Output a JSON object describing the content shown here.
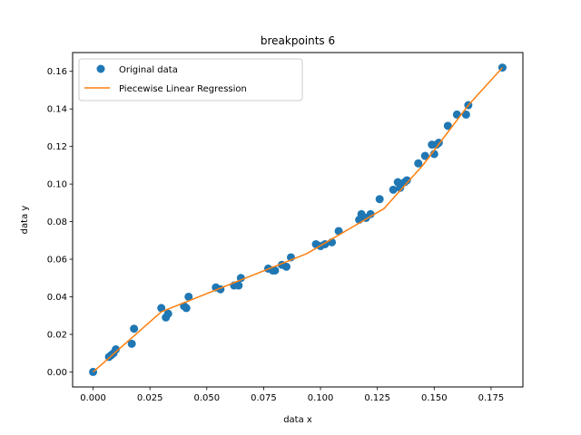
{
  "chart_data": {
    "type": "scatter",
    "title": "breakpoints 6",
    "xlabel": "data x",
    "ylabel": "data y",
    "xlim": [
      -0.009,
      0.189
    ],
    "ylim": [
      -0.008,
      0.17
    ],
    "grid": false,
    "legend_position": "top-left",
    "x_ticks": [
      0.0,
      0.025,
      0.05,
      0.075,
      0.1,
      0.125,
      0.15,
      0.175
    ],
    "x_tick_labels": [
      "0.000",
      "0.025",
      "0.050",
      "0.075",
      "0.100",
      "0.125",
      "0.150",
      "0.175"
    ],
    "y_ticks": [
      0.0,
      0.02,
      0.04,
      0.06,
      0.08,
      0.1,
      0.12,
      0.14,
      0.16
    ],
    "y_tick_labels": [
      "0.00",
      "0.02",
      "0.04",
      "0.06",
      "0.08",
      "0.10",
      "0.12",
      "0.14",
      "0.16"
    ],
    "series": [
      {
        "name": "Original data",
        "kind": "scatter",
        "color": "#1f77b4",
        "points": [
          [
            0.0,
            0.0
          ],
          [
            0.007,
            0.008
          ],
          [
            0.008,
            0.009
          ],
          [
            0.009,
            0.01
          ],
          [
            0.01,
            0.012
          ],
          [
            0.017,
            0.015
          ],
          [
            0.018,
            0.023
          ],
          [
            0.03,
            0.034
          ],
          [
            0.032,
            0.029
          ],
          [
            0.033,
            0.031
          ],
          [
            0.04,
            0.035
          ],
          [
            0.041,
            0.034
          ],
          [
            0.042,
            0.04
          ],
          [
            0.054,
            0.045
          ],
          [
            0.056,
            0.044
          ],
          [
            0.062,
            0.046
          ],
          [
            0.064,
            0.046
          ],
          [
            0.065,
            0.05
          ],
          [
            0.077,
            0.055
          ],
          [
            0.079,
            0.054
          ],
          [
            0.08,
            0.054
          ],
          [
            0.083,
            0.057
          ],
          [
            0.085,
            0.056
          ],
          [
            0.087,
            0.061
          ],
          [
            0.098,
            0.068
          ],
          [
            0.1,
            0.067
          ],
          [
            0.102,
            0.068
          ],
          [
            0.105,
            0.069
          ],
          [
            0.108,
            0.075
          ],
          [
            0.117,
            0.081
          ],
          [
            0.118,
            0.084
          ],
          [
            0.12,
            0.082
          ],
          [
            0.122,
            0.084
          ],
          [
            0.126,
            0.092
          ],
          [
            0.132,
            0.097
          ],
          [
            0.134,
            0.101
          ],
          [
            0.135,
            0.098
          ],
          [
            0.137,
            0.101
          ],
          [
            0.138,
            0.102
          ],
          [
            0.143,
            0.111
          ],
          [
            0.146,
            0.115
          ],
          [
            0.149,
            0.121
          ],
          [
            0.15,
            0.116
          ],
          [
            0.151,
            0.121
          ],
          [
            0.152,
            0.122
          ],
          [
            0.156,
            0.131
          ],
          [
            0.16,
            0.137
          ],
          [
            0.164,
            0.137
          ],
          [
            0.165,
            0.142
          ],
          [
            0.18,
            0.162
          ]
        ]
      },
      {
        "name": "Piecewise Linear Regression",
        "kind": "line",
        "color": "#ff7f0e",
        "points": [
          [
            0.0,
            0.0
          ],
          [
            0.03,
            0.032
          ],
          [
            0.094,
            0.063
          ],
          [
            0.128,
            0.087
          ],
          [
            0.145,
            0.11
          ],
          [
            0.165,
            0.142
          ],
          [
            0.18,
            0.162
          ]
        ]
      }
    ]
  }
}
